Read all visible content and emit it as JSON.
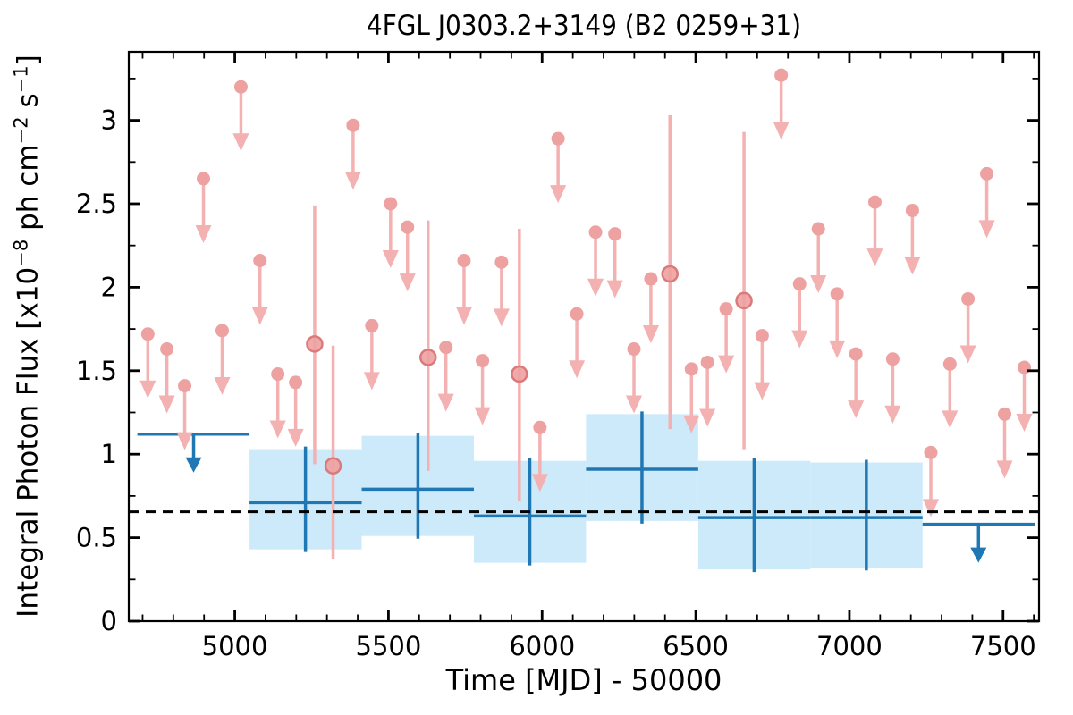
{
  "figure": {
    "title": "4FGL J0303.2+3149 (B2 0259+31)",
    "xlabel": "Time [MJD] - 50000",
    "ylabel_parts": {
      "p1": "Integral Photon Flux [x10",
      "s1": "−8",
      "p2": " ph cm",
      "s2": "−2",
      "p3": " s",
      "s3": "−1",
      "p4": "]"
    }
  },
  "colors": {
    "red_marker": "#eda1a0",
    "red_line": "#f3b1b1",
    "red_ring": "#db797b",
    "blue": "#1f77b4",
    "bin_box": "#cdeafa",
    "dashed_line": "#000000",
    "frame": "#000000",
    "text": "#000000",
    "background": "#ffffff"
  },
  "chart_data": {
    "type": "scatter",
    "title": "4FGL J0303.2+3149 (B2 0259+31)",
    "xlabel": "Time [MJD] - 50000",
    "ylabel": "Integral Photon Flux [x10^-8 ph cm^-2 s^-1]",
    "xlim": [
      4655,
      7617
    ],
    "ylim": [
      0,
      3.41
    ],
    "xticks": [
      5000,
      5500,
      6000,
      6500,
      7000,
      7500
    ],
    "yticks": [
      0,
      0.5,
      1,
      1.5,
      2,
      2.5,
      3
    ],
    "ytick_labels": [
      "0",
      "0.5",
      "1",
      "1.5",
      "2",
      "2.5",
      "3"
    ],
    "x_minor_step": 100,
    "y_minor_step": 0.25,
    "grid": false,
    "legend": null,
    "tick_direction": "in",
    "mean_flux_line": {
      "value": 0.655,
      "style": "dashed"
    },
    "monthly_upper_limits": {
      "name": "monthly-upper-limits",
      "marker": "circle-with-down-arrow",
      "arrow_length_flux": 0.39,
      "points": [
        [
          4717,
          1.72
        ],
        [
          4779,
          1.63
        ],
        [
          4837,
          1.41
        ],
        [
          4898,
          2.65
        ],
        [
          4959,
          1.74
        ],
        [
          5020,
          3.2
        ],
        [
          5082,
          2.16
        ],
        [
          5140,
          1.48
        ],
        [
          5198,
          1.43
        ],
        [
          5385,
          2.97
        ],
        [
          5446,
          1.77
        ],
        [
          5507,
          2.5
        ],
        [
          5562,
          2.36
        ],
        [
          5687,
          1.64
        ],
        [
          5746,
          2.16
        ],
        [
          5806,
          1.56
        ],
        [
          5868,
          2.15
        ],
        [
          5993,
          1.16
        ],
        [
          6052,
          2.89
        ],
        [
          6113,
          1.84
        ],
        [
          6174,
          2.33
        ],
        [
          6237,
          2.32
        ],
        [
          6299,
          1.63
        ],
        [
          6354,
          2.05
        ],
        [
          6486,
          1.51
        ],
        [
          6538,
          1.55
        ],
        [
          6599,
          1.87
        ],
        [
          6716,
          1.71
        ],
        [
          6778,
          3.27
        ],
        [
          6838,
          2.02
        ],
        [
          6899,
          2.35
        ],
        [
          6960,
          1.96
        ],
        [
          7021,
          1.6
        ],
        [
          7083,
          2.51
        ],
        [
          7141,
          1.57
        ],
        [
          7205,
          2.46
        ],
        [
          7265,
          1.01
        ],
        [
          7327,
          1.54
        ],
        [
          7386,
          1.93
        ],
        [
          7447,
          2.68
        ],
        [
          7505,
          1.24
        ],
        [
          7569,
          1.52
        ]
      ]
    },
    "monthly_detections": {
      "name": "monthly-detections",
      "marker": "circle-with-errorbar",
      "points": [
        {
          "x": 5260,
          "y": 1.66,
          "y_lo": 0.94,
          "y_hi": 2.49
        },
        {
          "x": 5320,
          "y": 0.93,
          "y_lo": 0.37,
          "y_hi": 1.65
        },
        {
          "x": 5629,
          "y": 1.58,
          "y_lo": 0.9,
          "y_hi": 2.4
        },
        {
          "x": 5926,
          "y": 1.48,
          "y_lo": 0.72,
          "y_hi": 2.35
        },
        {
          "x": 6416,
          "y": 2.08,
          "y_lo": 1.15,
          "y_hi": 3.03
        },
        {
          "x": 6657,
          "y": 1.92,
          "y_lo": 1.03,
          "y_hi": 2.93
        }
      ]
    },
    "yearly_bins": [
      {
        "start": 4683,
        "end": 5048,
        "center": 4866,
        "upper_limit": true,
        "value": 1.12
      },
      {
        "start": 5048,
        "end": 5413,
        "center": 5230,
        "upper_limit": false,
        "value": 0.71,
        "err_lo": 0.43,
        "err_hi": 1.03
      },
      {
        "start": 5413,
        "end": 5778,
        "center": 5596,
        "upper_limit": false,
        "value": 0.79,
        "err_lo": 0.51,
        "err_hi": 1.11
      },
      {
        "start": 5778,
        "end": 6143,
        "center": 5960,
        "upper_limit": false,
        "value": 0.63,
        "err_lo": 0.35,
        "err_hi": 0.96
      },
      {
        "start": 6143,
        "end": 6508,
        "center": 6325,
        "upper_limit": false,
        "value": 0.91,
        "err_lo": 0.6,
        "err_hi": 1.24
      },
      {
        "start": 6508,
        "end": 6873,
        "center": 6690,
        "upper_limit": false,
        "value": 0.62,
        "err_lo": 0.31,
        "err_hi": 0.96
      },
      {
        "start": 6873,
        "end": 7238,
        "center": 7055,
        "upper_limit": false,
        "value": 0.62,
        "err_lo": 0.32,
        "err_hi": 0.95
      },
      {
        "start": 7238,
        "end": 7603,
        "center": 7420,
        "upper_limit": true,
        "value": 0.58
      }
    ]
  }
}
